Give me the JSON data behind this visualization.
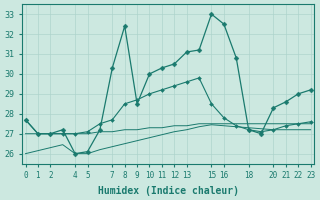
{
  "xlabel": "Humidex (Indice chaleur)",
  "xlim": [
    -0.3,
    23.3
  ],
  "ylim": [
    25.5,
    33.5
  ],
  "yticks": [
    26,
    27,
    28,
    29,
    30,
    31,
    32,
    33
  ],
  "xticks": [
    0,
    1,
    2,
    4,
    5,
    7,
    8,
    9,
    10,
    11,
    12,
    13,
    15,
    16,
    18,
    20,
    21,
    22,
    23
  ],
  "bg_color": "#cce8e0",
  "line_color": "#1a7a6e",
  "grid_color": "#aed4cc",
  "line1_x": [
    0,
    1,
    2,
    3,
    4,
    5,
    6,
    7,
    8,
    9,
    10,
    11,
    12,
    13,
    14,
    15,
    16,
    17,
    18,
    19,
    20,
    21,
    22,
    23
  ],
  "line1_y": [
    27.7,
    27.0,
    27.0,
    27.2,
    26.0,
    26.1,
    27.2,
    30.3,
    32.4,
    28.5,
    30.0,
    30.3,
    30.5,
    31.1,
    31.2,
    33.0,
    32.5,
    30.8,
    27.2,
    27.0,
    28.3,
    28.6,
    29.0,
    29.2
  ],
  "line2_x": [
    0,
    1,
    2,
    3,
    4,
    5,
    6,
    7,
    8,
    9,
    10,
    11,
    12,
    13,
    14,
    15,
    16,
    17,
    18,
    19,
    20,
    21,
    22,
    23
  ],
  "line2_y": [
    27.7,
    27.0,
    27.0,
    27.0,
    27.0,
    27.1,
    27.5,
    27.7,
    28.5,
    28.7,
    29.0,
    29.2,
    29.4,
    29.6,
    29.8,
    28.5,
    27.8,
    27.4,
    27.2,
    27.1,
    27.2,
    27.4,
    27.5,
    27.6
  ],
  "line3_x": [
    0,
    1,
    2,
    3,
    4,
    5,
    6,
    7,
    8,
    9,
    10,
    11,
    12,
    13,
    14,
    15,
    16,
    17,
    18,
    19,
    20,
    21,
    22,
    23
  ],
  "line3_y": [
    27.0,
    27.0,
    27.0,
    27.0,
    27.0,
    27.0,
    27.1,
    27.1,
    27.2,
    27.2,
    27.3,
    27.3,
    27.4,
    27.4,
    27.5,
    27.5,
    27.5,
    27.5,
    27.5,
    27.5,
    27.5,
    27.5,
    27.5,
    27.5
  ],
  "line4_x": [
    0,
    1,
    2,
    3,
    4,
    5,
    6,
    7,
    8,
    9,
    10,
    11,
    12,
    13,
    14,
    15,
    16,
    17,
    18,
    19,
    20,
    21,
    22,
    23
  ],
  "line4_y": [
    26.0,
    26.15,
    26.3,
    26.45,
    26.0,
    26.0,
    26.2,
    26.35,
    26.5,
    26.65,
    26.8,
    26.95,
    27.1,
    27.2,
    27.35,
    27.45,
    27.4,
    27.35,
    27.3,
    27.25,
    27.2,
    27.2,
    27.2,
    27.2
  ]
}
